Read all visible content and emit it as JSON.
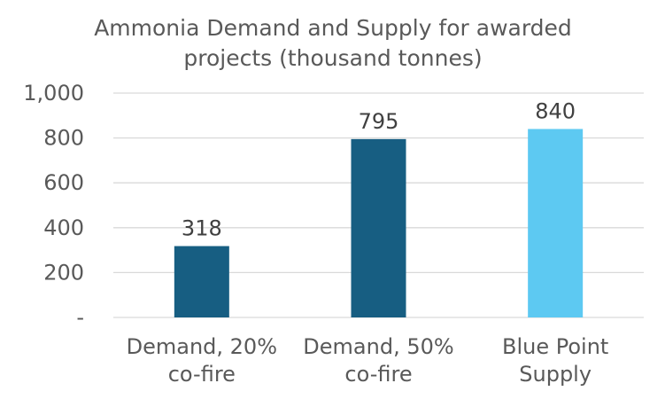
{
  "chart_data": {
    "type": "bar",
    "title_lines": [
      "Ammonia Demand and Supply for awarded",
      "projects (thousand tonnes)"
    ],
    "categories": [
      [
        "Demand, 20%",
        "co-fire"
      ],
      [
        "Demand, 50%",
        "co-fire"
      ],
      [
        "Blue Point",
        "Supply"
      ]
    ],
    "values": [
      318,
      795,
      840
    ],
    "data_labels": [
      "318",
      "795",
      "840"
    ],
    "bar_colors": [
      "#175e82",
      "#175e82",
      "#5dc9f2"
    ],
    "ylim": [
      0,
      1000
    ],
    "yticks": [
      0,
      200,
      400,
      600,
      800,
      1000
    ],
    "ytick_labels": [
      "-",
      "200",
      "400",
      "600",
      "800",
      "1,000"
    ],
    "grid": true,
    "legend": "none"
  }
}
